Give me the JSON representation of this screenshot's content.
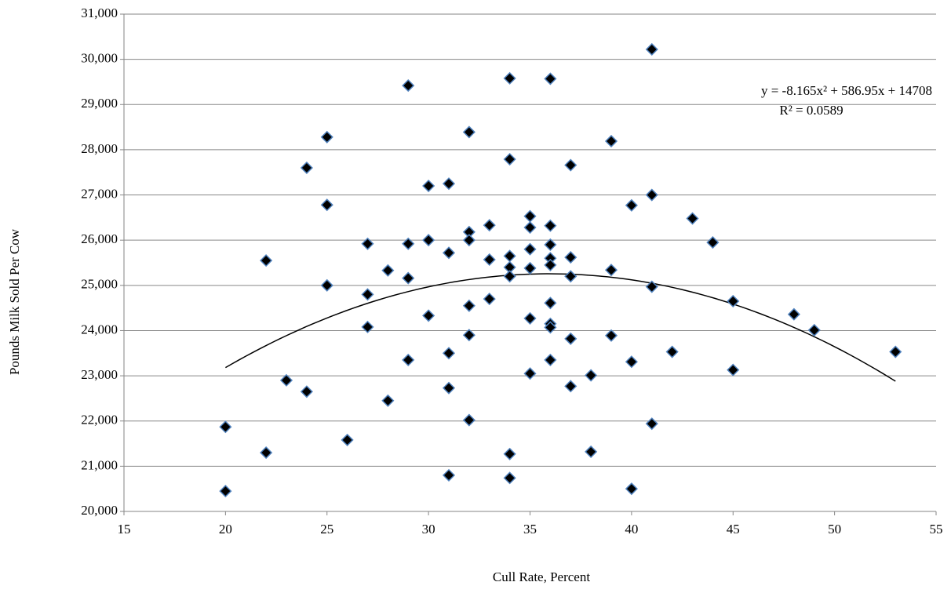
{
  "chart_data": {
    "type": "scatter",
    "x_label": "Cull Rate, Percent",
    "y_label": "Pounds Milk Sold Per Cow",
    "x": [
      20,
      20,
      22,
      22,
      23,
      24,
      24,
      25,
      25,
      25,
      26,
      27,
      27,
      27,
      28,
      28,
      29,
      29,
      29,
      29,
      30,
      30,
      30,
      31,
      31,
      31,
      31,
      31,
      32,
      32,
      32,
      32,
      32,
      32,
      33,
      33,
      33,
      34,
      34,
      34,
      34,
      34,
      34,
      34,
      35,
      35,
      35,
      35,
      35,
      35,
      36,
      36,
      36,
      36,
      36,
      36,
      36,
      36,
      36,
      37,
      37,
      37,
      37,
      37,
      38,
      38,
      39,
      39,
      39,
      40,
      40,
      40,
      41,
      41,
      41,
      41,
      42,
      43,
      44,
      45,
      45,
      48,
      49,
      53
    ],
    "values": [
      21870,
      20450,
      25550,
      21300,
      22900,
      27600,
      22650,
      28280,
      26780,
      25000,
      21580,
      25920,
      24800,
      24080,
      25330,
      22450,
      29420,
      25920,
      25160,
      23350,
      27200,
      26000,
      24330,
      27250,
      25720,
      23500,
      22730,
      20800,
      28390,
      26180,
      26000,
      24550,
      23900,
      22020,
      26330,
      25570,
      24700,
      29580,
      27790,
      25650,
      25400,
      25200,
      21270,
      20740,
      26530,
      26280,
      25800,
      25380,
      24270,
      23050,
      29570,
      26320,
      25900,
      25600,
      25450,
      24610,
      24150,
      24070,
      23350,
      27660,
      25620,
      25200,
      23820,
      22770,
      23010,
      21320,
      28190,
      25340,
      23890,
      26770,
      23310,
      20500,
      30220,
      27000,
      24970,
      21940,
      23530,
      26480,
      25950,
      24650,
      23130,
      24360,
      24010,
      23530
    ],
    "marker_color": "#000000",
    "marker_edge": "#4f81bd",
    "trendline": {
      "type": "polynomial",
      "coefficients": [
        -8.165,
        586.95,
        14708
      ],
      "equation": "y = -8.165x² + 586.95x + 14708",
      "r_squared": "R² = 0.0589",
      "color": "#000000"
    },
    "xlim": [
      15,
      55
    ],
    "xticks": [
      15,
      20,
      25,
      30,
      35,
      40,
      45,
      50,
      55
    ],
    "ylim": [
      20000,
      31000
    ],
    "yticks": [
      {
        "value": 20000,
        "label": "20,000"
      },
      {
        "value": 21000,
        "label": "21,000"
      },
      {
        "value": 22000,
        "label": "22,000"
      },
      {
        "value": 23000,
        "label": "23,000"
      },
      {
        "value": 24000,
        "label": "24,000"
      },
      {
        "value": 25000,
        "label": "25,000"
      },
      {
        "value": 26000,
        "label": "26,000"
      },
      {
        "value": 27000,
        "label": "27,000"
      },
      {
        "value": 28000,
        "label": "28,000"
      },
      {
        "value": 29000,
        "label": "29,000"
      },
      {
        "value": 30000,
        "label": "30,000"
      },
      {
        "value": 31000,
        "label": "31,000"
      }
    ],
    "grid": true
  }
}
